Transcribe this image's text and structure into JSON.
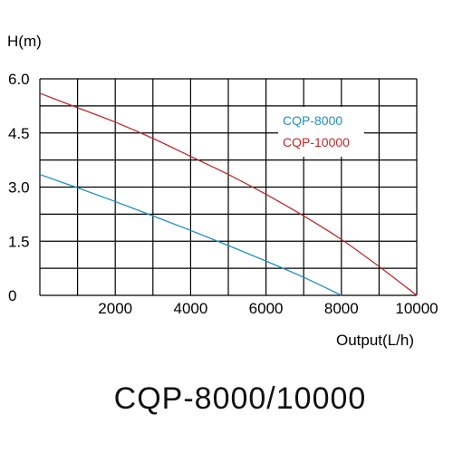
{
  "caption": "CQP-8000/10000",
  "chart_data": {
    "type": "line",
    "title": "",
    "ylabel": "H(m)",
    "xlabel": "Output(L/h)",
    "xlim": [
      0,
      10000
    ],
    "ylim": [
      0,
      6.0
    ],
    "x_ticks": [
      "2000",
      "4000",
      "6000",
      "8000",
      "10000"
    ],
    "y_ticks": [
      "0",
      "1.5",
      "3.0",
      "4.5",
      "6.0"
    ],
    "grid": true,
    "legend_position": "upper-right inside plot",
    "series": [
      {
        "name": "CQP-8000",
        "color": "#1f8fbf",
        "x": [
          0,
          1000,
          2000,
          3000,
          4000,
          5000,
          6000,
          7000,
          8000
        ],
        "y": [
          3.35,
          2.98,
          2.6,
          2.2,
          1.8,
          1.38,
          0.95,
          0.5,
          0.0
        ]
      },
      {
        "name": "CQP-10000",
        "color": "#c0282a",
        "x": [
          0,
          1000,
          2000,
          3000,
          4000,
          5000,
          6000,
          7000,
          8000,
          9000,
          10000
        ],
        "y": [
          5.6,
          5.2,
          4.8,
          4.35,
          3.85,
          3.35,
          2.8,
          2.2,
          1.55,
          0.8,
          0.0
        ]
      }
    ]
  }
}
